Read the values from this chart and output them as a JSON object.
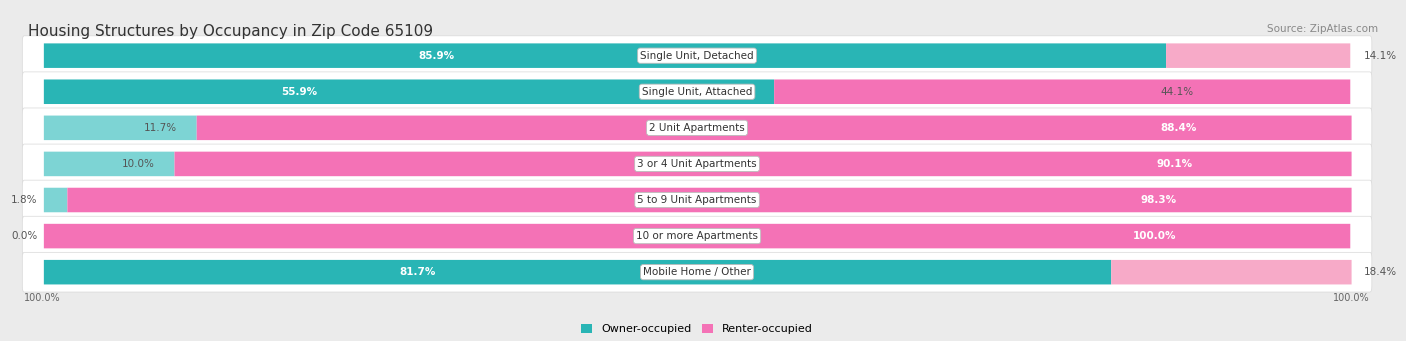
{
  "title": "Housing Structures by Occupancy in Zip Code 65109",
  "source": "Source: ZipAtlas.com",
  "categories": [
    "Single Unit, Detached",
    "Single Unit, Attached",
    "2 Unit Apartments",
    "3 or 4 Unit Apartments",
    "5 to 9 Unit Apartments",
    "10 or more Apartments",
    "Mobile Home / Other"
  ],
  "owner_pct": [
    85.9,
    55.9,
    11.7,
    10.0,
    1.8,
    0.0,
    81.7
  ],
  "renter_pct": [
    14.1,
    44.1,
    88.4,
    90.1,
    98.3,
    100.0,
    18.4
  ],
  "owner_colors": [
    "#29b5b5",
    "#29b5b5",
    "#7dd4d4",
    "#7dd4d4",
    "#7dd4d4",
    "#7dd4d4",
    "#29b5b5"
  ],
  "renter_colors": [
    "#f7aac8",
    "#f472b6",
    "#f472b6",
    "#f472b6",
    "#f472b6",
    "#f472b6",
    "#f7aac8"
  ],
  "bg_color": "#ebebeb",
  "row_bg": "#ffffff",
  "title_fontsize": 11,
  "label_fontsize": 7.5,
  "pct_fontsize": 7.5,
  "legend_fontsize": 8,
  "source_fontsize": 7.5,
  "bar_height": 0.68
}
